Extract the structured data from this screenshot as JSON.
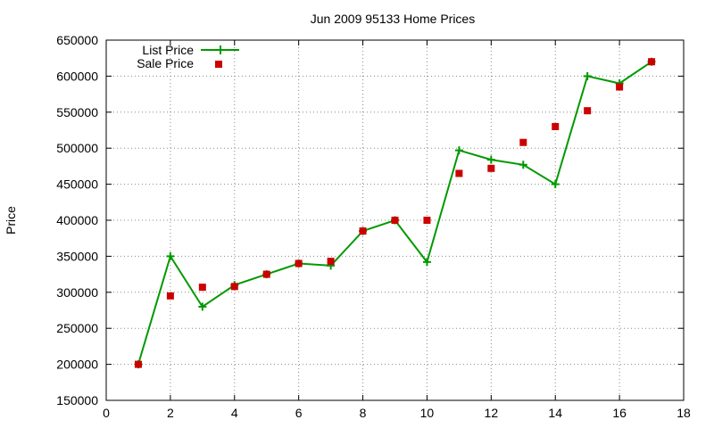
{
  "chart_data": {
    "type": "line",
    "title": "Jun 2009 95133 Home Prices",
    "xlabel": "",
    "ylabel": "Price",
    "xlim": [
      0,
      18
    ],
    "ylim": [
      150000,
      650000
    ],
    "x_ticks": [
      0,
      2,
      4,
      6,
      8,
      10,
      12,
      14,
      16,
      18
    ],
    "y_ticks": [
      150000,
      200000,
      250000,
      300000,
      350000,
      400000,
      450000,
      500000,
      550000,
      600000,
      650000
    ],
    "grid": true,
    "legend_position": "top-left",
    "series": [
      {
        "name": "List Price",
        "kind": "line-with-plus-markers",
        "color": "#009900",
        "x": [
          1,
          2,
          3,
          4,
          5,
          6,
          7,
          8,
          9,
          10,
          11,
          12,
          13,
          14,
          15,
          16,
          17
        ],
        "y": [
          200000,
          350000,
          280000,
          310000,
          325000,
          340000,
          337000,
          385000,
          400000,
          342000,
          497000,
          484000,
          477000,
          450000,
          600000,
          590000,
          620000
        ]
      },
      {
        "name": "Sale Price",
        "kind": "square-markers",
        "color": "#cc0000",
        "x": [
          1,
          2,
          3,
          4,
          5,
          6,
          7,
          8,
          9,
          10,
          11,
          12,
          13,
          14,
          15,
          16,
          17
        ],
        "y": [
          200000,
          295000,
          307000,
          308000,
          325000,
          340000,
          343000,
          385000,
          400000,
          400000,
          465000,
          472000,
          508000,
          530000,
          552000,
          585000,
          620000
        ]
      }
    ]
  }
}
